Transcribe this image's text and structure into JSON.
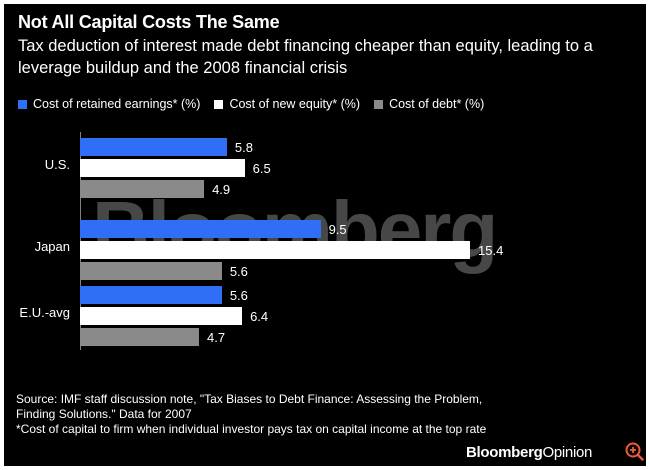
{
  "header": {
    "title": "Not All Capital Costs The Same",
    "subtitle": "Tax deduction of interest made debt financing cheaper than equity, leading to a leverage buildup and the 2008 financial crisis"
  },
  "watermark": "Bloomberg",
  "footer": {
    "source": "Source: IMF staff discussion note, \"Tax Biases to Debt Finance: Assessing the Problem, Finding Solutions.\" Data for 2007",
    "note": "*Cost of capital to firm when individual investor pays tax on capital income at the top rate",
    "brand_bold": "Bloomberg",
    "brand_light": "Opinion"
  },
  "colors": {
    "background": "#000000",
    "retained": "#2f6ff5",
    "new_equity": "#ffffff",
    "debt": "#8a8a8a",
    "brand_accent": "#f05a3c"
  },
  "chart_data": {
    "type": "bar",
    "orientation": "horizontal",
    "title": "Not All Capital Costs The Same",
    "categories": [
      "U.S.",
      "Japan",
      "E.U.-avg"
    ],
    "series": [
      {
        "name": "Cost of retained earnings* (%)",
        "color": "#2f6ff5",
        "values": [
          5.8,
          9.5,
          5.6
        ],
        "labels": [
          "5.8",
          "9.5",
          "5.6"
        ]
      },
      {
        "name": "Cost of new equity* (%)",
        "color": "#ffffff",
        "values": [
          6.5,
          15.4,
          6.4
        ],
        "labels": [
          "6.5",
          "15.4",
          "6.4"
        ]
      },
      {
        "name": "Cost of debt* (%)",
        "color": "#8a8a8a",
        "values": [
          4.9,
          5.6,
          4.7
        ],
        "labels": [
          "4.9",
          "5.6",
          "4.7"
        ]
      }
    ],
    "xlim": [
      0,
      15.4
    ],
    "legend_position": "top-left",
    "grid": false
  }
}
